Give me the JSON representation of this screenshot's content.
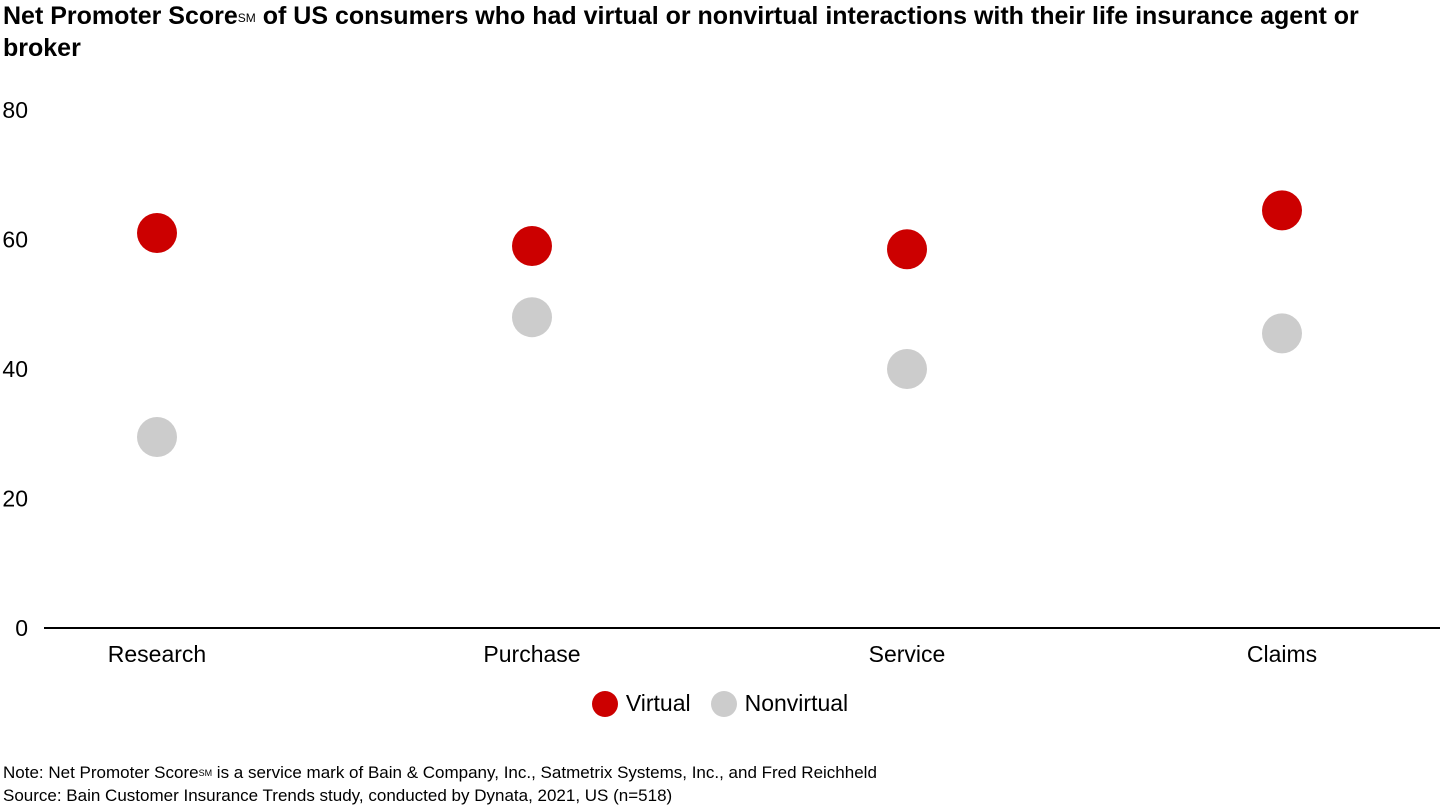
{
  "title": {
    "main": "Net Promoter Score",
    "sm": "SM",
    "rest": " of US consumers who had virtual or nonvirtual interactions with their life insurance agent or broker"
  },
  "colors": {
    "virtual": "#cc0000",
    "nonvirtual": "#cccccc",
    "axis": "#000000"
  },
  "chart_data": {
    "type": "scatter",
    "categories": [
      "Research",
      "Purchase",
      "Service",
      "Claims"
    ],
    "series": [
      {
        "name": "Virtual",
        "values": [
          61,
          59,
          58.5,
          64.5
        ]
      },
      {
        "name": "Nonvirtual",
        "values": [
          29.5,
          48,
          40,
          45.5
        ]
      }
    ],
    "yticks": [
      "0",
      "20",
      "40",
      "60",
      "80"
    ],
    "ylim": [
      0,
      80
    ],
    "grid": false,
    "legend_position": "bottom-center"
  },
  "legend": {
    "virtual_label": "Virtual",
    "nonvirtual_label": "Nonvirtual"
  },
  "notes": {
    "note_prefix": "Note: Net Promoter Score",
    "note_sm": "SM",
    "note_rest": " is a service mark of Bain & Company, Inc., Satmetrix Systems, Inc., and Fred Reichheld",
    "source": "Source: Bain Customer Insurance Trends study, conducted by Dynata, 2021, US (n=518)"
  }
}
